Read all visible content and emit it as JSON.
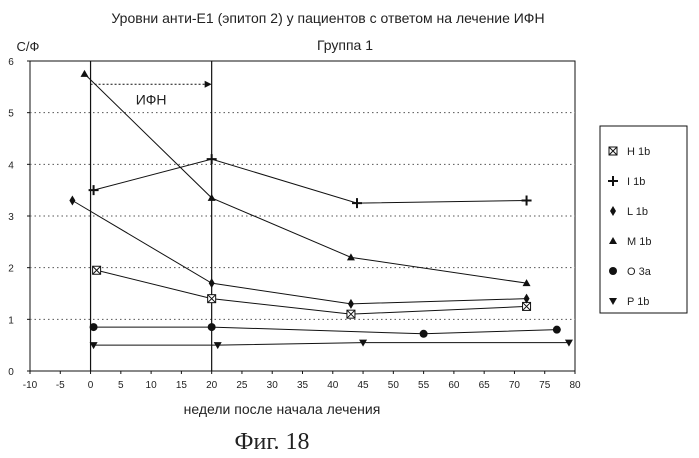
{
  "chart_data": {
    "type": "line",
    "title": "Уровни анти-Е1 (эпитоп 2) у пациентов с ответом на лечение ИФН",
    "subtitle": "Группа 1",
    "ylabel": "С/Ф",
    "xlabel": "недели после начала лечения",
    "caption": "Фиг. 18",
    "xlim": [
      -10,
      80
    ],
    "ylim": [
      0,
      6
    ],
    "x_ticks": [
      -10,
      -5,
      0,
      5,
      10,
      15,
      20,
      25,
      30,
      35,
      40,
      45,
      50,
      55,
      60,
      65,
      70,
      75,
      80
    ],
    "x_tick_labels": [
      "-10",
      "-5",
      "0",
      "5",
      "10",
      "15",
      "20",
      "25",
      "30",
      "35",
      "40",
      "45",
      "50",
      "55",
      "60",
      "65",
      "70",
      "75",
      "80"
    ],
    "y_ticks": [
      0,
      1,
      2,
      3,
      4,
      5,
      6
    ],
    "y_tick_labels": [
      "0",
      "1",
      "2",
      "3",
      "4",
      "5",
      "6"
    ],
    "gridlines_y": [
      1,
      2,
      3,
      4,
      5
    ],
    "vlines_x": [
      0,
      20
    ],
    "grid": true,
    "legend_position": "right",
    "annotation": {
      "text": "ИФН",
      "x_from": 0,
      "x_to": 20,
      "y": 5.55
    },
    "series": [
      {
        "name": "H 1b",
        "marker": "box-x",
        "x": [
          1,
          20,
          43,
          72
        ],
        "y": [
          1.95,
          1.4,
          1.1,
          1.25
        ]
      },
      {
        "name": "I 1b",
        "marker": "plus",
        "x": [
          0.5,
          20,
          44,
          72
        ],
        "y": [
          3.5,
          4.1,
          3.25,
          3.3
        ]
      },
      {
        "name": "L 1b",
        "marker": "diamond",
        "x": [
          -3,
          20,
          43,
          72
        ],
        "y": [
          3.3,
          1.7,
          1.3,
          1.4
        ]
      },
      {
        "name": "M 1b",
        "marker": "triangle-up",
        "x": [
          -1,
          20,
          43,
          72
        ],
        "y": [
          5.75,
          3.35,
          2.2,
          1.7
        ]
      },
      {
        "name": "O 3a",
        "marker": "circle",
        "x": [
          0.5,
          20,
          55,
          77
        ],
        "y": [
          0.85,
          0.85,
          0.72,
          0.8
        ]
      },
      {
        "name": "P 1b",
        "marker": "triangle-down",
        "x": [
          0.5,
          21,
          45,
          79
        ],
        "y": [
          0.5,
          0.5,
          0.55,
          0.55
        ]
      }
    ]
  }
}
